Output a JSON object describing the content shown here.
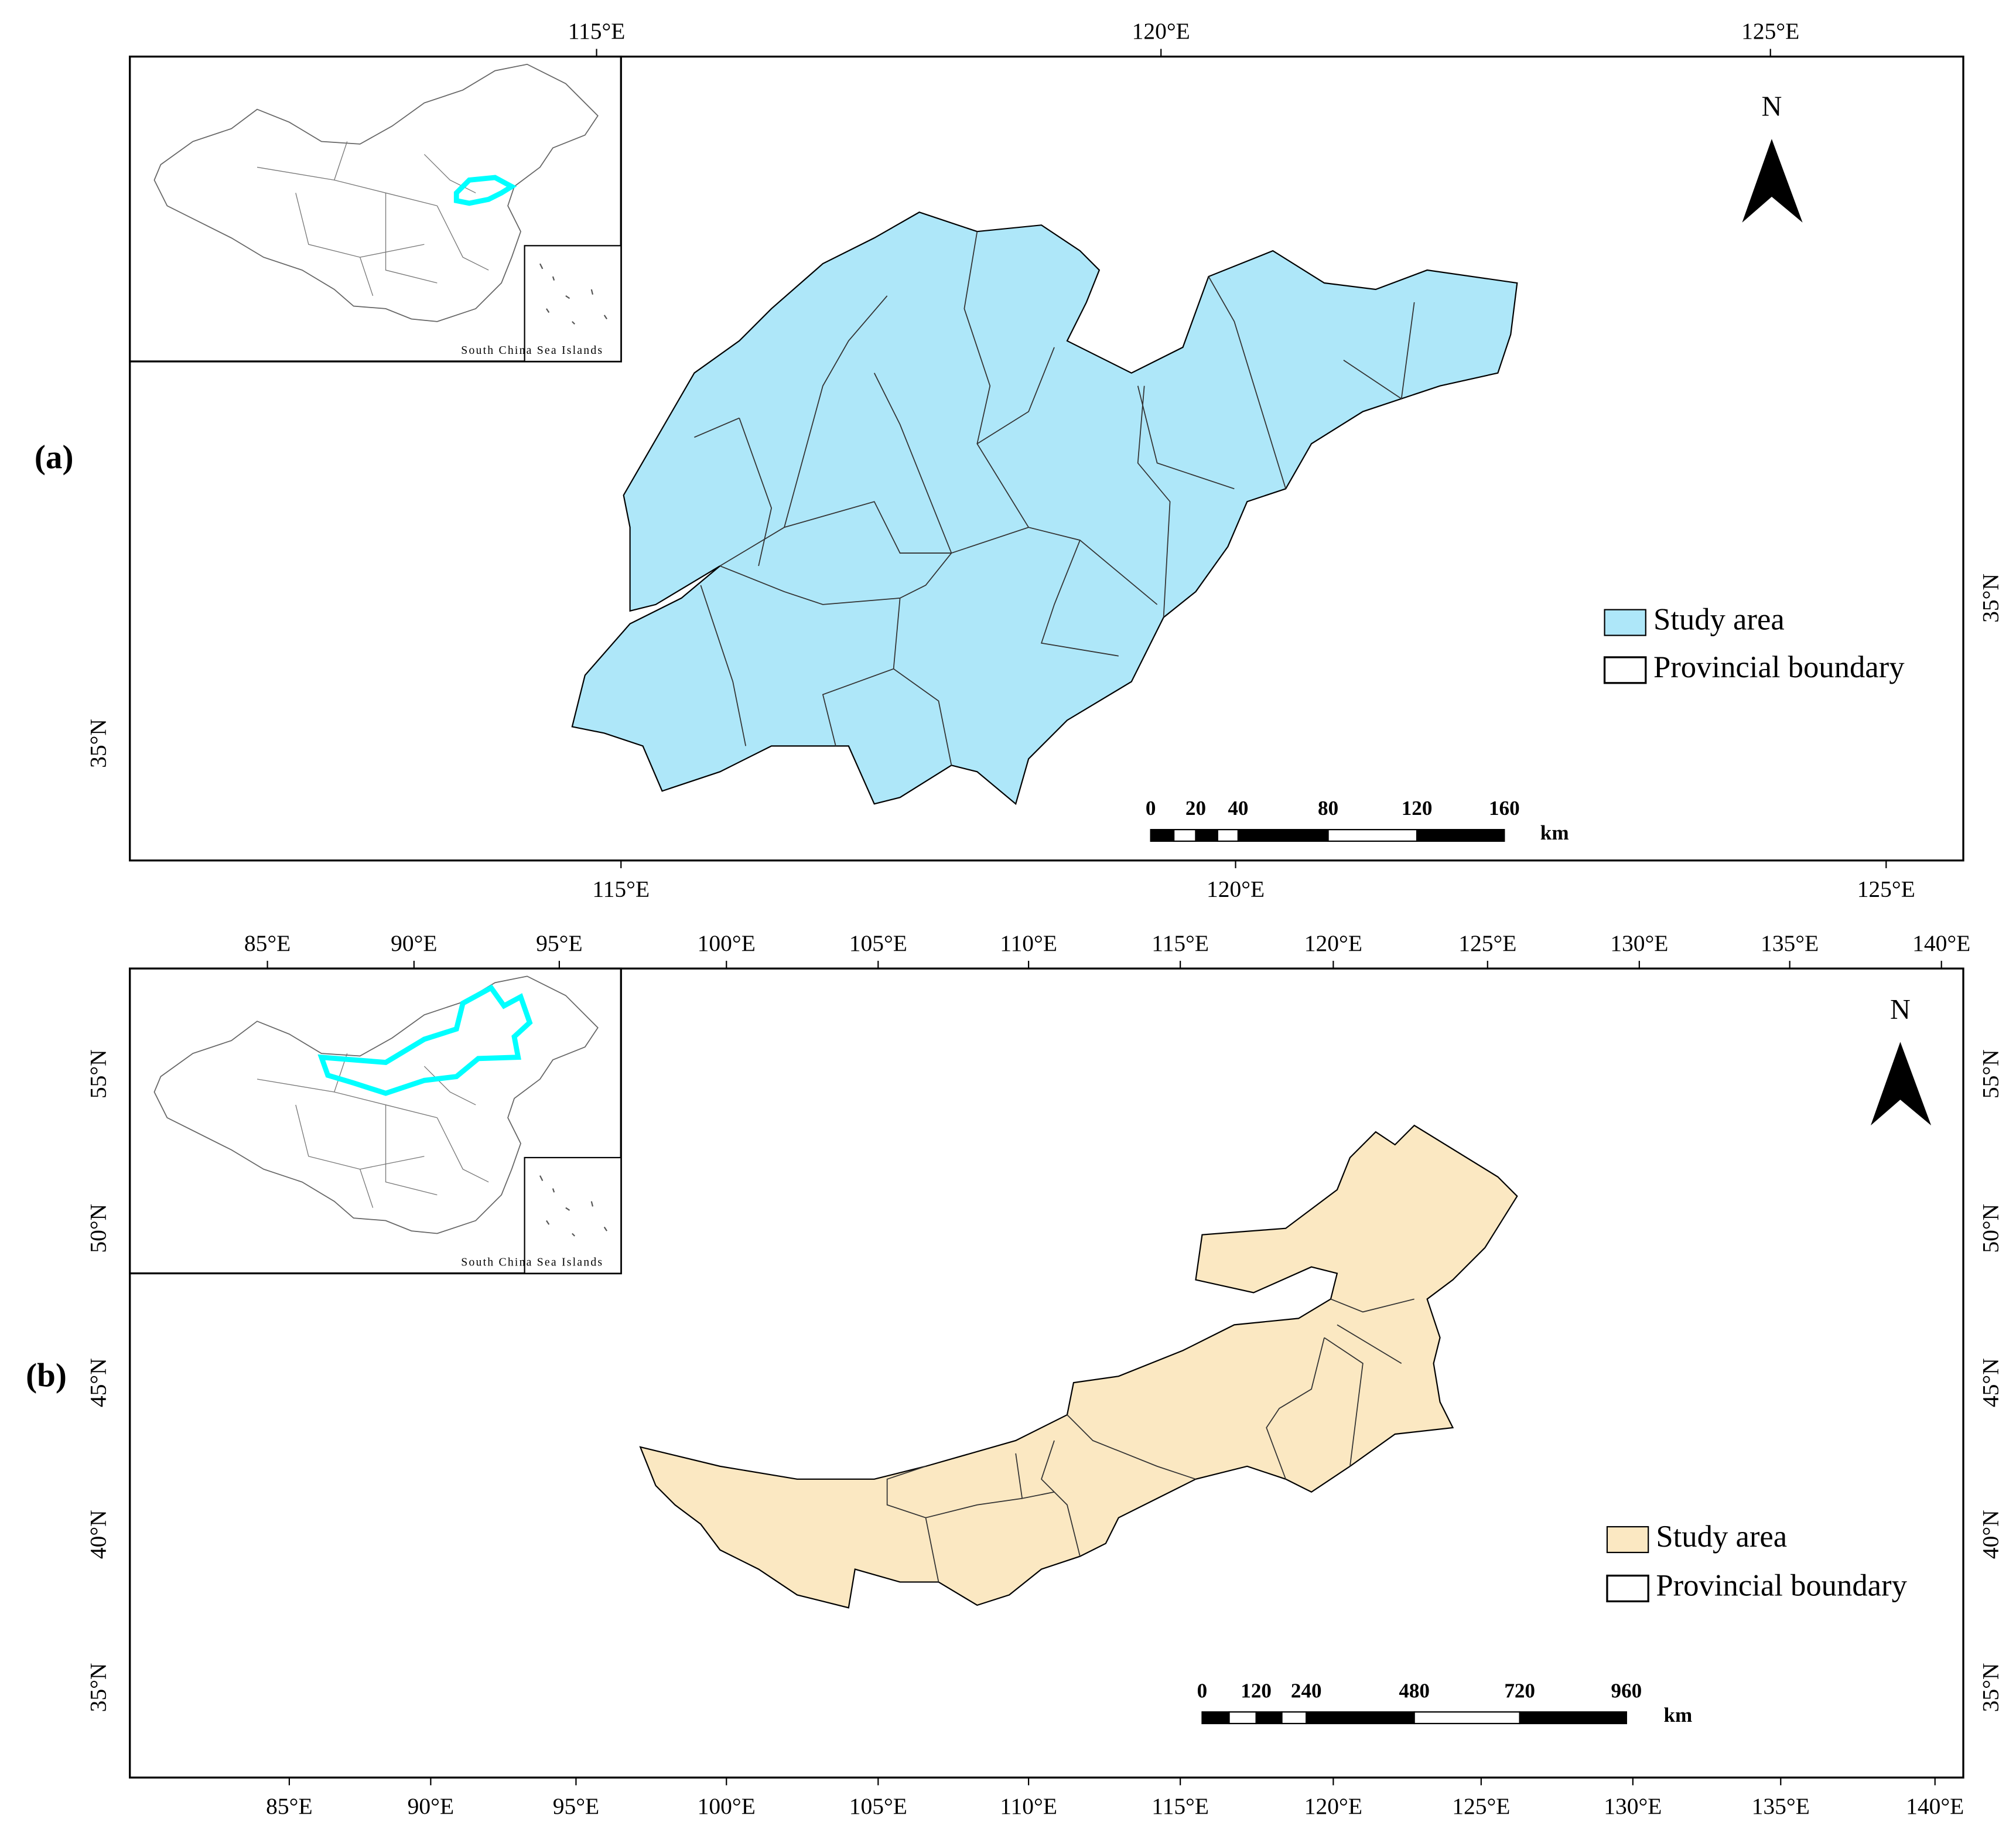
{
  "panels": [
    {
      "label": "(a)",
      "fill": "#aee7f9",
      "highlight": "#00ffff",
      "top_ticks": [
        "115°E",
        "120°E",
        "125°E"
      ],
      "bottom_ticks": [
        "115°E",
        "120°E",
        "125°E"
      ],
      "left_ticks": [
        "35°N"
      ],
      "right_ticks": [
        "35°N"
      ],
      "north": "N",
      "inset_caption": "South China Sea Islands",
      "legend": [
        "Study area",
        "Provincial boundary"
      ],
      "scale_labels": [
        "0",
        "20",
        "40",
        "80",
        "120",
        "160"
      ],
      "scale_unit": "km"
    },
    {
      "label": "(b)",
      "fill": "#fbe8c2",
      "highlight": "#00ffff",
      "top_ticks": [
        "85°E",
        "90°E",
        "95°E",
        "100°E",
        "105°E",
        "110°E",
        "115°E",
        "120°E",
        "125°E",
        "130°E",
        "135°E",
        "140°E"
      ],
      "bottom_ticks": [
        "85°E",
        "90°E",
        "95°E",
        "100°E",
        "105°E",
        "110°E",
        "115°E",
        "120°E",
        "125°E",
        "130°E",
        "135°E",
        "140°E"
      ],
      "left_ticks": [
        "55°N",
        "50°N",
        "45°N",
        "40°N",
        "35°N"
      ],
      "right_ticks": [
        "55°N",
        "50°N",
        "45°N",
        "40°N",
        "35°N"
      ],
      "north": "N",
      "inset_caption": "South China Sea Islands",
      "legend": [
        "Study area",
        "Provincial boundary"
      ],
      "scale_labels": [
        "0",
        "120",
        "240",
        "480",
        "720",
        "960"
      ],
      "scale_unit": "km"
    }
  ]
}
